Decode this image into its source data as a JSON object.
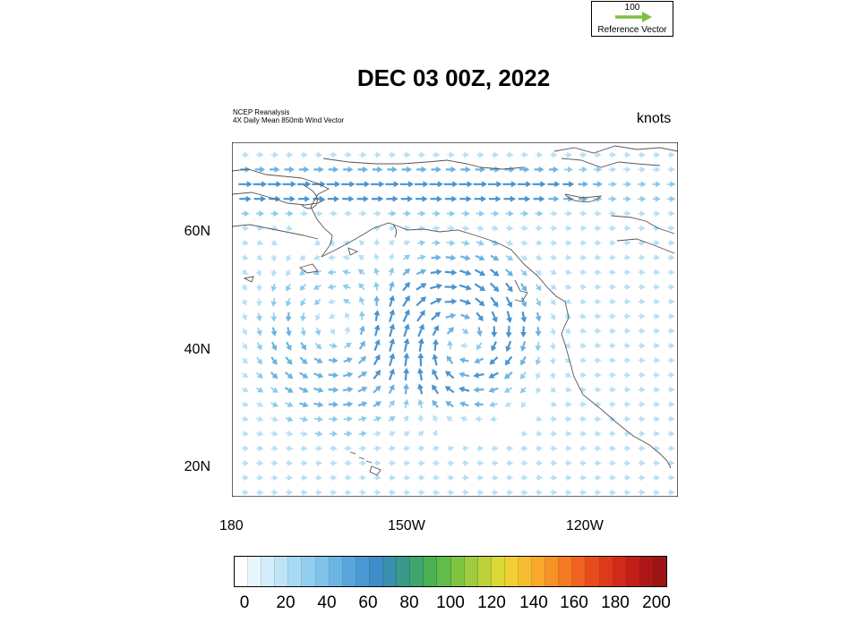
{
  "reference_vector": {
    "value": "100",
    "label": "Reference Vector",
    "arrow_color": "#7ec03f"
  },
  "title": "DEC 03 00Z, 2022",
  "source_line1": "NCEP Reanalysis",
  "source_line2": "4X Daily Mean 850mb  Wind Vector",
  "units": "knots",
  "axes": {
    "y_labels": [
      "60N",
      "40N",
      "20N"
    ],
    "x_labels": [
      "180",
      "150W",
      "120W"
    ],
    "lat_range": [
      15,
      75
    ],
    "lon_range": [
      -180,
      -105
    ]
  },
  "colorbar": {
    "tick_labels": [
      "0",
      "20",
      "40",
      "60",
      "80",
      "100",
      "120",
      "140",
      "160",
      "180",
      "200"
    ],
    "colors": [
      "#ffffff",
      "#e8f6fd",
      "#d2eefa",
      "#bde5f7",
      "#a6dbf3",
      "#92cfef",
      "#7dc3ea",
      "#6ab5e4",
      "#58a6db",
      "#4a98d2",
      "#3f8ec9",
      "#3a8fab",
      "#3a9a8a",
      "#3fa56c",
      "#4ab052",
      "#63bb49",
      "#80c442",
      "#9fcc3f",
      "#bdd23b",
      "#dcd938",
      "#f0d034",
      "#f7bd30",
      "#f8a82b",
      "#f79226",
      "#f47a22",
      "#ef621f",
      "#e74b1c",
      "#dd391a",
      "#d02a19",
      "#c11f18",
      "#ae1717",
      "#9c1414"
    ]
  }
}
